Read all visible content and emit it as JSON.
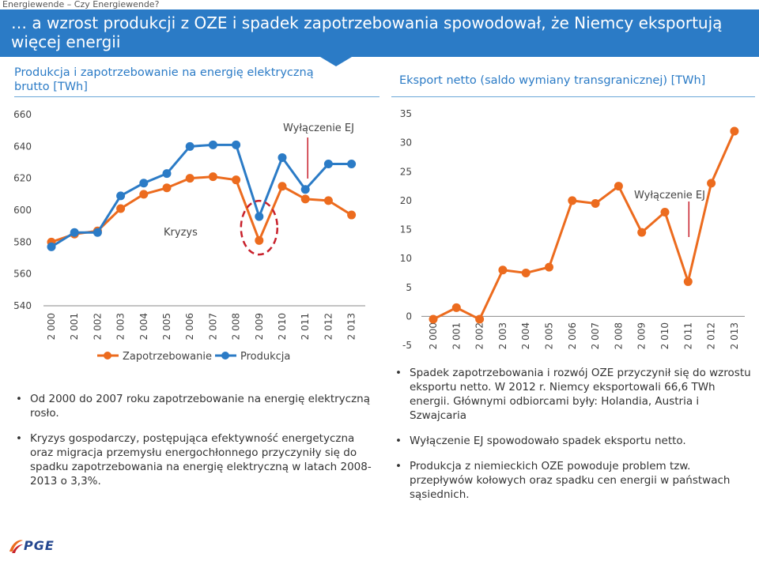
{
  "header": {
    "breadcrumb": "Energiewende – Czy Energiewende?",
    "title": "… a wzrost produkcji z OZE i spadek zapotrzebowania spowodował, że Niemcy eksportują więcej energii"
  },
  "left_panel": {
    "subtitle": "Produkcja i zapotrzebowanie na energię elektryczną brutto [TWh]",
    "bullets": [
      "Od 2000 do 2007 roku zapotrzebowanie na energię elektryczną rosło.",
      "Kryzys gospodarczy, postępująca efektywność energetyczna oraz migracja przemysłu energochłonnego przyczyniły się do spadku zapotrzebowania na energię elektryczną w latach 2008-2013 o 3,3%."
    ]
  },
  "right_panel": {
    "subtitle": "Eksport netto (saldo wymiany transgranicznej) [TWh]",
    "bullets": [
      "Spadek zapotrzebowania i rozwój OZE przyczynił się do wzrostu eksportu netto. W 2012 r. Niemcy eksportowali 66,6 TWh energii. Głównymi odbiorcami były: Holandia, Austria i Szwajcaria",
      "Wyłączenie EJ spowodowało spadek eksportu netto.",
      "Produkcja z niemieckich OZE powoduje problem tzw. przepływów kołowych oraz spadku cen energii w państwach sąsiednich."
    ]
  },
  "logo": {
    "text": "PGE"
  },
  "colors": {
    "blue": "#2b7bc6",
    "orange": "#ec6b1e",
    "red": "#c8202b"
  },
  "chart_data": [
    {
      "type": "line",
      "title": "Produkcja i zapotrzebowanie na energię elektryczną brutto [TWh]",
      "categories": [
        "2 000",
        "2 001",
        "2 002",
        "2 003",
        "2 004",
        "2 005",
        "2 006",
        "2 007",
        "2 008",
        "2 009",
        "2 010",
        "2 011",
        "2 012",
        "2 013"
      ],
      "ylim": [
        540,
        660
      ],
      "yticks": [
        540,
        560,
        580,
        600,
        620,
        640,
        660
      ],
      "series": [
        {
          "name": "Zapotrzebowanie",
          "color": "#ec6b1e",
          "values": [
            580,
            585,
            587,
            601,
            610,
            614,
            620,
            621,
            619,
            581,
            615,
            607,
            606,
            597
          ]
        },
        {
          "name": "Produkcja",
          "color": "#2b7bc6",
          "values": [
            577,
            586,
            586,
            609,
            617,
            623,
            640,
            641,
            641,
            596,
            633,
            613,
            629,
            629
          ]
        }
      ],
      "annotations": [
        {
          "text": "Wyłączenie EJ"
        },
        {
          "text": "Kryzys"
        }
      ],
      "legend": "bottom"
    },
    {
      "type": "line",
      "title": "Eksport netto (saldo wymiany transgranicznej) [TWh]",
      "categories": [
        "2 000",
        "2 001",
        "2 002",
        "2 003",
        "2 004",
        "2 005",
        "2 006",
        "2 007",
        "2 008",
        "2 009",
        "2 010",
        "2 011",
        "2 012",
        "2 013"
      ],
      "ylim": [
        -5,
        35
      ],
      "yticks": [
        -5,
        0,
        5,
        10,
        15,
        20,
        25,
        30,
        35
      ],
      "series": [
        {
          "name": "Eksport netto",
          "color": "#ec6b1e",
          "values": [
            -0.5,
            1.5,
            -0.5,
            8,
            7.5,
            8.5,
            20,
            19.5,
            22.5,
            14.5,
            18,
            6,
            23,
            32
          ]
        }
      ],
      "annotations": [
        {
          "text": "Wyłączenie EJ"
        }
      ]
    }
  ]
}
